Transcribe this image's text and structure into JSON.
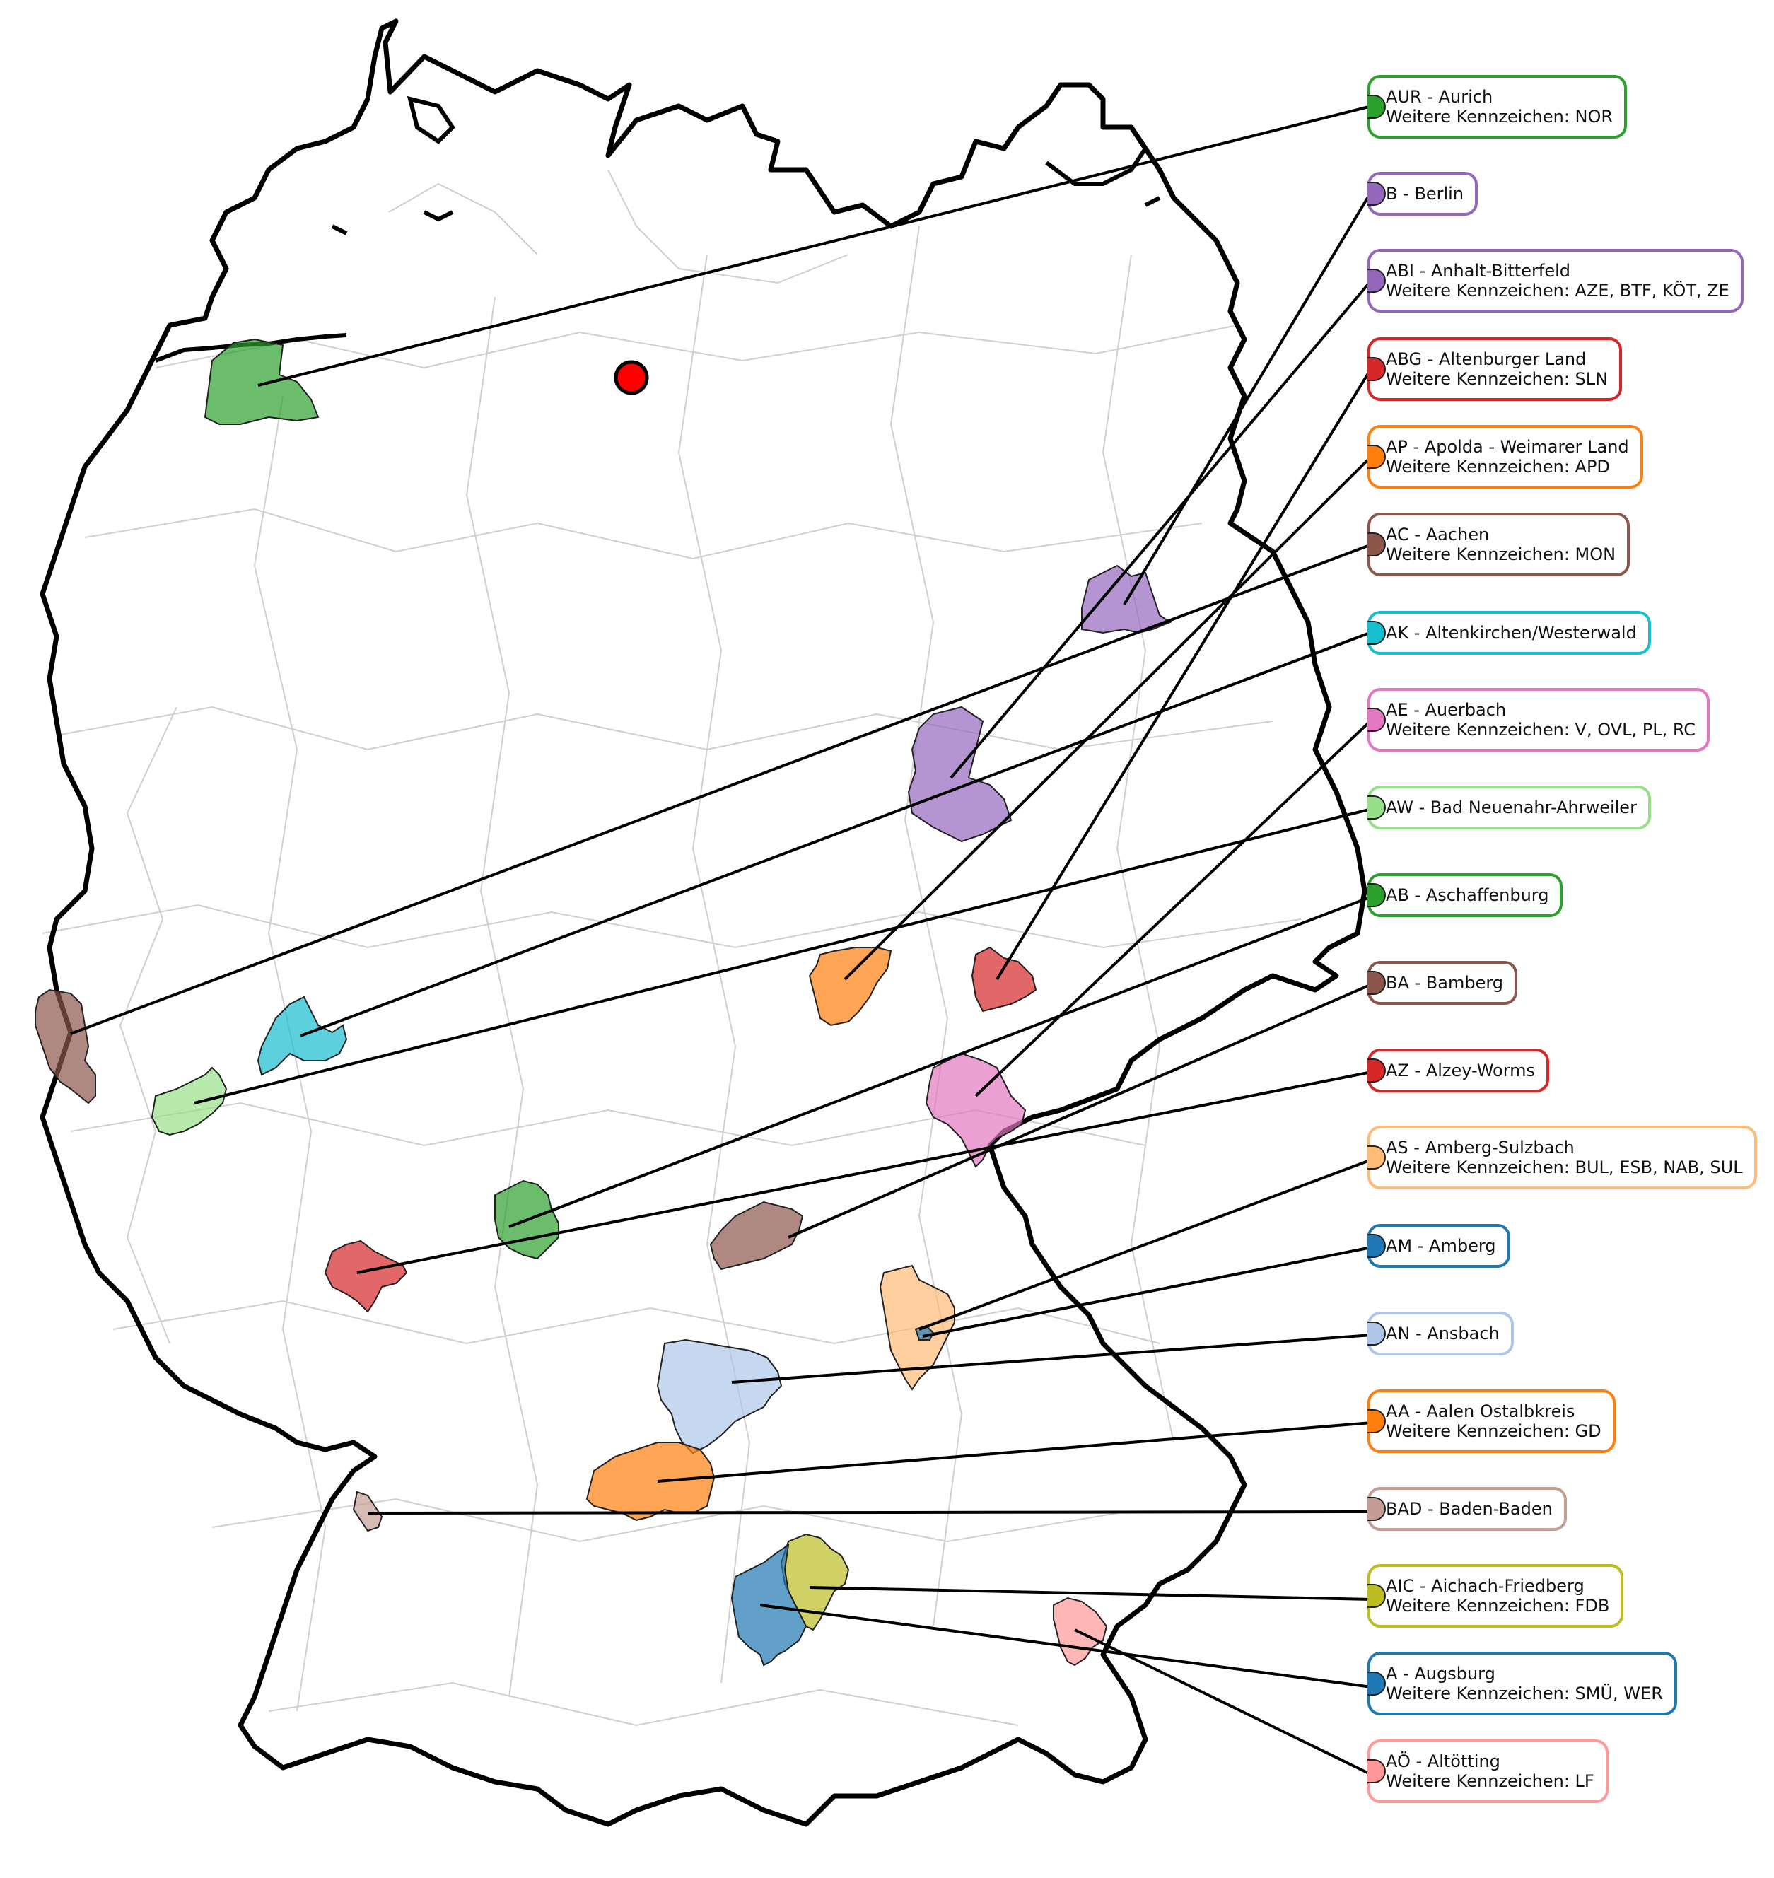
{
  "map": {
    "type": "district-map",
    "region": "Germany"
  },
  "labels": [
    {
      "code": "AUR",
      "name": "Aurich",
      "line1": "AUR - Aurich",
      "line2": "Weitere Kennzeichen: NOR",
      "color": "#2ca02c"
    },
    {
      "code": "B",
      "name": "Berlin",
      "line1": "B - Berlin",
      "line2": "",
      "color": "#9467bd"
    },
    {
      "code": "ABI",
      "name": "Anhalt-Bitterfeld",
      "line1": "ABI - Anhalt-Bitterfeld",
      "line2": "Weitere Kennzeichen: AZE, BTF, KÖT, ZE",
      "color": "#9467bd"
    },
    {
      "code": "ABG",
      "name": "Altenburger Land",
      "line1": "ABG - Altenburger Land",
      "line2": "Weitere Kennzeichen: SLN",
      "color": "#d62728"
    },
    {
      "code": "AP",
      "name": "Apolda - Weimarer Land",
      "line1": "AP - Apolda - Weimarer Land",
      "line2": "Weitere Kennzeichen: APD",
      "color": "#ff7f0e"
    },
    {
      "code": "AC",
      "name": "Aachen",
      "line1": "AC - Aachen",
      "line2": "Weitere Kennzeichen: MON",
      "color": "#8c564b"
    },
    {
      "code": "AK",
      "name": "Altenkirchen/Westerwald",
      "line1": "AK - Altenkirchen/Westerwald",
      "line2": "",
      "color": "#17becf"
    },
    {
      "code": "AE",
      "name": "Auerbach",
      "line1": "AE - Auerbach",
      "line2": "Weitere Kennzeichen: V, OVL, PL, RC",
      "color": "#e377c2"
    },
    {
      "code": "AW",
      "name": "Bad Neuenahr-Ahrweiler",
      "line1": "AW - Bad Neuenahr-Ahrweiler",
      "line2": "",
      "color": "#98df8a"
    },
    {
      "code": "AB",
      "name": "Aschaffenburg",
      "line1": "AB - Aschaffenburg",
      "line2": "",
      "color": "#2ca02c"
    },
    {
      "code": "BA",
      "name": "Bamberg",
      "line1": "BA - Bamberg",
      "line2": "",
      "color": "#8c564b"
    },
    {
      "code": "AZ",
      "name": "Alzey-Worms",
      "line1": "AZ - Alzey-Worms",
      "line2": "",
      "color": "#d62728"
    },
    {
      "code": "AS",
      "name": "Amberg-Sulzbach",
      "line1": "AS - Amberg-Sulzbach",
      "line2": "Weitere Kennzeichen: BUL, ESB, NAB, SUL",
      "color": "#ffbb78"
    },
    {
      "code": "AM",
      "name": "Amberg",
      "line1": "AM - Amberg",
      "line2": "",
      "color": "#1f77b4"
    },
    {
      "code": "AN",
      "name": "Ansbach",
      "line1": "AN - Ansbach",
      "line2": "",
      "color": "#aec7e8"
    },
    {
      "code": "AA",
      "name": "Aalen Ostalbkreis",
      "line1": "AA - Aalen Ostalbkreis",
      "line2": "Weitere Kennzeichen: GD",
      "color": "#ff7f0e"
    },
    {
      "code": "BAD",
      "name": "Baden-Baden",
      "line1": "BAD - Baden-Baden",
      "line2": "",
      "color": "#c49c94"
    },
    {
      "code": "AIC",
      "name": "Aichach-Friedberg",
      "line1": "AIC - Aichach-Friedberg",
      "line2": "Weitere Kennzeichen: FDB",
      "color": "#bcbd22"
    },
    {
      "code": "A",
      "name": "Augsburg",
      "line1": "A - Augsburg",
      "line2": "Weitere Kennzeichen: SMÜ, WER",
      "color": "#1f77b4"
    },
    {
      "code": "AÖ",
      "name": "Altötting",
      "line1": "AÖ - Altötting",
      "line2": "Weitere Kennzeichen: LF",
      "color": "#ff9896"
    }
  ],
  "marker": {
    "name": "red-location-marker",
    "color": "#ff0000"
  }
}
